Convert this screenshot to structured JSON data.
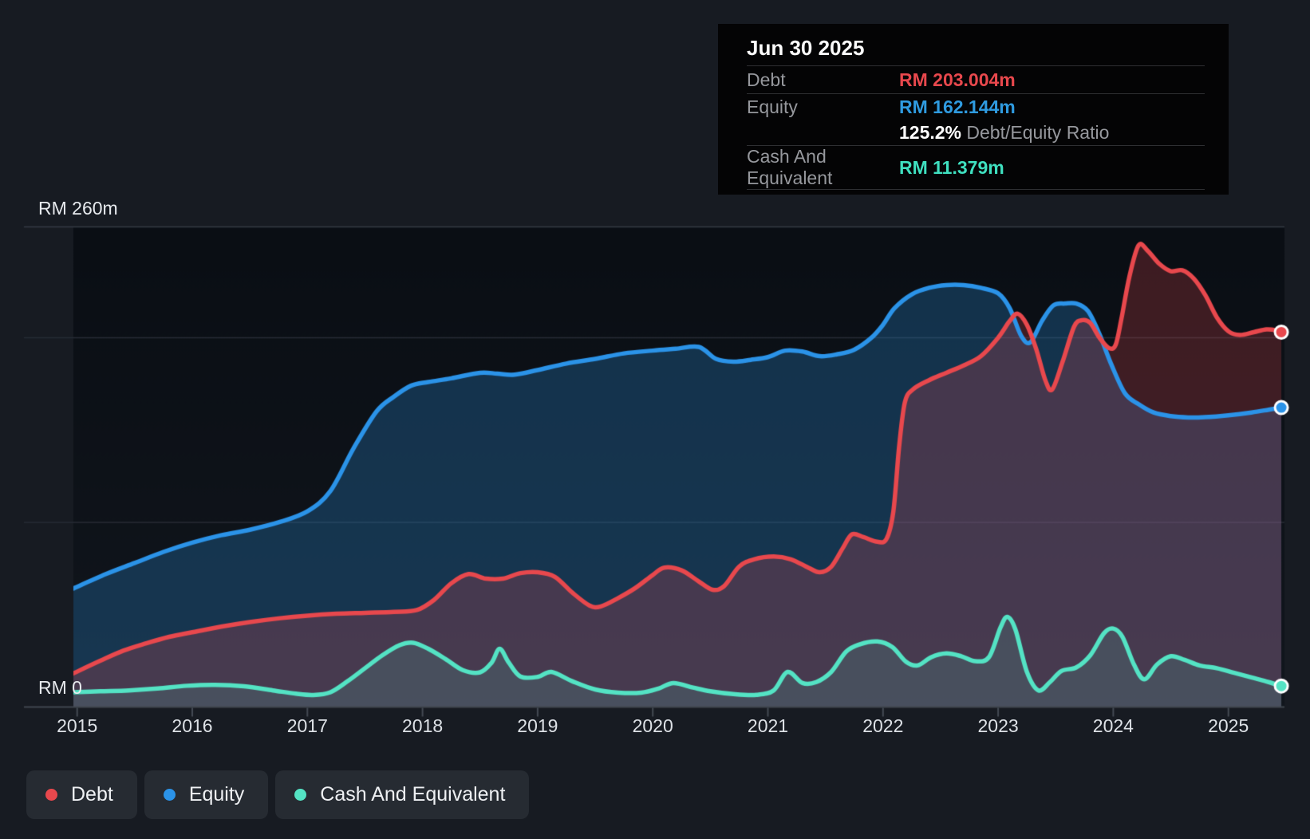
{
  "chart_data": {
    "type": "area",
    "unit": "RM millions",
    "grid": true,
    "legend_position": "bottom-left",
    "x_axis": {
      "labels": [
        "2015",
        "2016",
        "2017",
        "2018",
        "2019",
        "2020",
        "2021",
        "2022",
        "2023",
        "2024",
        "2025"
      ],
      "range": [
        2014.96,
        2025.46
      ]
    },
    "y_axis": {
      "top_label": "RM 260m",
      "zero_label": "RM 0",
      "ylim": [
        0,
        260
      ],
      "gridline_values": [
        260,
        200,
        100,
        0
      ]
    },
    "series": [
      {
        "name": "Equity",
        "color": "#2b93e8",
        "fill": "rgba(41,132,201,0.30)",
        "last_point_label": "RM 162.144m",
        "points": [
          [
            2014.96,
            64
          ],
          [
            2015.25,
            72
          ],
          [
            2015.5,
            78
          ],
          [
            2015.75,
            84
          ],
          [
            2016,
            89
          ],
          [
            2016.25,
            93
          ],
          [
            2016.5,
            96
          ],
          [
            2016.75,
            100
          ],
          [
            2017,
            106
          ],
          [
            2017.2,
            117
          ],
          [
            2017.4,
            140
          ],
          [
            2017.6,
            160
          ],
          [
            2017.75,
            168
          ],
          [
            2017.9,
            174
          ],
          [
            2018.05,
            176
          ],
          [
            2018.25,
            178
          ],
          [
            2018.5,
            181
          ],
          [
            2018.65,
            180.5
          ],
          [
            2018.8,
            180
          ],
          [
            2019,
            182.5
          ],
          [
            2019.25,
            186
          ],
          [
            2019.5,
            188.5
          ],
          [
            2019.75,
            191.5
          ],
          [
            2020,
            193
          ],
          [
            2020.2,
            194
          ],
          [
            2020.4,
            195
          ],
          [
            2020.55,
            188.5
          ],
          [
            2020.7,
            187
          ],
          [
            2020.85,
            188
          ],
          [
            2021,
            189.5
          ],
          [
            2021.15,
            193
          ],
          [
            2021.3,
            192.5
          ],
          [
            2021.45,
            190
          ],
          [
            2021.6,
            191
          ],
          [
            2021.75,
            193.5
          ],
          [
            2021.9,
            200
          ],
          [
            2022,
            207
          ],
          [
            2022.1,
            216
          ],
          [
            2022.25,
            223.5
          ],
          [
            2022.4,
            227
          ],
          [
            2022.55,
            228.5
          ],
          [
            2022.7,
            228.5
          ],
          [
            2022.85,
            227
          ],
          [
            2023,
            224
          ],
          [
            2023.1,
            216
          ],
          [
            2023.2,
            201
          ],
          [
            2023.28,
            197.5
          ],
          [
            2023.38,
            209
          ],
          [
            2023.48,
            217.5
          ],
          [
            2023.58,
            218.5
          ],
          [
            2023.68,
            218.5
          ],
          [
            2023.78,
            214.5
          ],
          [
            2023.88,
            202
          ],
          [
            2023.98,
            186
          ],
          [
            2024.1,
            170
          ],
          [
            2024.22,
            164
          ],
          [
            2024.35,
            159.5
          ],
          [
            2024.5,
            157.5
          ],
          [
            2024.65,
            156.8
          ],
          [
            2024.8,
            157
          ],
          [
            2025,
            158
          ],
          [
            2025.2,
            159.5
          ],
          [
            2025.35,
            161
          ],
          [
            2025.46,
            162.144
          ]
        ]
      },
      {
        "name": "Debt",
        "color": "#e8484d",
        "fill": "rgba(226,72,79,0.24)",
        "last_point_label": "RM 203.004m",
        "points": [
          [
            2014.96,
            18
          ],
          [
            2015.2,
            25
          ],
          [
            2015.4,
            30.5
          ],
          [
            2015.6,
            34.5
          ],
          [
            2015.8,
            38
          ],
          [
            2016,
            40.5
          ],
          [
            2016.25,
            43.5
          ],
          [
            2016.5,
            46
          ],
          [
            2016.75,
            48
          ],
          [
            2017,
            49.5
          ],
          [
            2017.25,
            50.5
          ],
          [
            2017.5,
            51
          ],
          [
            2017.75,
            51.5
          ],
          [
            2017.95,
            52.5
          ],
          [
            2018.1,
            58
          ],
          [
            2018.25,
            67
          ],
          [
            2018.4,
            72
          ],
          [
            2018.55,
            69.5
          ],
          [
            2018.7,
            69.5
          ],
          [
            2018.85,
            72.5
          ],
          [
            2019,
            73
          ],
          [
            2019.15,
            70.5
          ],
          [
            2019.3,
            62
          ],
          [
            2019.45,
            55
          ],
          [
            2019.55,
            54.5
          ],
          [
            2019.7,
            59
          ],
          [
            2019.85,
            64.5
          ],
          [
            2020,
            71.5
          ],
          [
            2020.1,
            75.5
          ],
          [
            2020.25,
            74
          ],
          [
            2020.4,
            68
          ],
          [
            2020.52,
            63.5
          ],
          [
            2020.62,
            65.5
          ],
          [
            2020.75,
            76
          ],
          [
            2020.88,
            80
          ],
          [
            2021.05,
            81.5
          ],
          [
            2021.2,
            80
          ],
          [
            2021.35,
            75.5
          ],
          [
            2021.45,
            73
          ],
          [
            2021.55,
            76
          ],
          [
            2021.65,
            86
          ],
          [
            2021.73,
            93.5
          ],
          [
            2021.83,
            92
          ],
          [
            2021.95,
            89.5
          ],
          [
            2022.03,
            91
          ],
          [
            2022.09,
            106
          ],
          [
            2022.14,
            141
          ],
          [
            2022.19,
            165
          ],
          [
            2022.26,
            172
          ],
          [
            2022.4,
            177
          ],
          [
            2022.55,
            181
          ],
          [
            2022.7,
            185
          ],
          [
            2022.85,
            190
          ],
          [
            2023,
            200
          ],
          [
            2023.1,
            209
          ],
          [
            2023.17,
            213
          ],
          [
            2023.25,
            207
          ],
          [
            2023.33,
            194
          ],
          [
            2023.41,
            177
          ],
          [
            2023.47,
            172
          ],
          [
            2023.56,
            187
          ],
          [
            2023.66,
            206
          ],
          [
            2023.73,
            209.5
          ],
          [
            2023.8,
            208
          ],
          [
            2023.88,
            200
          ],
          [
            2023.96,
            194.5
          ],
          [
            2024.02,
            196
          ],
          [
            2024.07,
            210
          ],
          [
            2024.14,
            233
          ],
          [
            2024.22,
            250
          ],
          [
            2024.3,
            247
          ],
          [
            2024.4,
            240
          ],
          [
            2024.5,
            236
          ],
          [
            2024.6,
            236.5
          ],
          [
            2024.7,
            232
          ],
          [
            2024.8,
            223
          ],
          [
            2024.9,
            211
          ],
          [
            2025,
            203.5
          ],
          [
            2025.1,
            201.5
          ],
          [
            2025.22,
            203
          ],
          [
            2025.33,
            204.5
          ],
          [
            2025.42,
            204
          ],
          [
            2025.46,
            203.004
          ]
        ]
      },
      {
        "name": "Cash And Equivalent",
        "color": "#54e3c4",
        "fill": "rgba(84,227,196,0.13)",
        "last_point_label": "RM 11.379m",
        "points": [
          [
            2014.96,
            8
          ],
          [
            2015.2,
            8.5
          ],
          [
            2015.45,
            9
          ],
          [
            2015.7,
            10
          ],
          [
            2015.95,
            11.5
          ],
          [
            2016.2,
            12
          ],
          [
            2016.45,
            11.2
          ],
          [
            2016.7,
            9
          ],
          [
            2016.9,
            7.2
          ],
          [
            2017.05,
            6.5
          ],
          [
            2017.2,
            8
          ],
          [
            2017.35,
            14
          ],
          [
            2017.5,
            21
          ],
          [
            2017.65,
            28
          ],
          [
            2017.8,
            33.5
          ],
          [
            2017.92,
            34.8
          ],
          [
            2018.05,
            31.5
          ],
          [
            2018.2,
            26
          ],
          [
            2018.35,
            20
          ],
          [
            2018.5,
            18.8
          ],
          [
            2018.6,
            24
          ],
          [
            2018.67,
            31.5
          ],
          [
            2018.75,
            24
          ],
          [
            2018.85,
            16.5
          ],
          [
            2019,
            16.3
          ],
          [
            2019.12,
            19
          ],
          [
            2019.3,
            14
          ],
          [
            2019.5,
            9.5
          ],
          [
            2019.7,
            7.8
          ],
          [
            2019.9,
            7.8
          ],
          [
            2020.05,
            10
          ],
          [
            2020.18,
            13
          ],
          [
            2020.35,
            10.5
          ],
          [
            2020.5,
            8.5
          ],
          [
            2020.7,
            7
          ],
          [
            2020.9,
            6.6
          ],
          [
            2021.05,
            9
          ],
          [
            2021.17,
            19
          ],
          [
            2021.3,
            13
          ],
          [
            2021.42,
            13.5
          ],
          [
            2021.55,
            19
          ],
          [
            2021.68,
            30
          ],
          [
            2021.8,
            34
          ],
          [
            2021.95,
            35.5
          ],
          [
            2022.08,
            32.5
          ],
          [
            2022.2,
            24.5
          ],
          [
            2022.3,
            22.5
          ],
          [
            2022.42,
            27
          ],
          [
            2022.55,
            29
          ],
          [
            2022.68,
            27.5
          ],
          [
            2022.8,
            24.8
          ],
          [
            2022.92,
            27
          ],
          [
            2023.02,
            43
          ],
          [
            2023.08,
            48.8
          ],
          [
            2023.15,
            42
          ],
          [
            2023.25,
            19
          ],
          [
            2023.35,
            9
          ],
          [
            2023.45,
            13.5
          ],
          [
            2023.55,
            19.5
          ],
          [
            2023.68,
            21.5
          ],
          [
            2023.8,
            28
          ],
          [
            2023.92,
            40
          ],
          [
            2024.0,
            42.5
          ],
          [
            2024.08,
            38
          ],
          [
            2024.18,
            23
          ],
          [
            2024.27,
            15
          ],
          [
            2024.38,
            23
          ],
          [
            2024.5,
            27.5
          ],
          [
            2024.62,
            25.5
          ],
          [
            2024.75,
            22.5
          ],
          [
            2024.9,
            21
          ],
          [
            2025.05,
            18.5
          ],
          [
            2025.2,
            16
          ],
          [
            2025.35,
            13.5
          ],
          [
            2025.46,
            11.379
          ]
        ]
      }
    ]
  },
  "tooltip": {
    "title": "Jun 30 2025",
    "debt_label": "Debt",
    "debt_value": "RM 203.004m",
    "equity_label": "Equity",
    "equity_value": "RM 162.144m",
    "ratio_value": "125.2%",
    "ratio_label": " Debt/Equity Ratio",
    "cash_label": "Cash And Equivalent",
    "cash_value": "RM 11.379m"
  },
  "legend": {
    "items": [
      {
        "label": "Debt",
        "color": "#e8484d"
      },
      {
        "label": "Equity",
        "color": "#2b93e8"
      },
      {
        "label": "Cash And Equivalent",
        "color": "#54e3c4"
      }
    ]
  },
  "y_axis_labels": {
    "top": "RM 260m",
    "zero": "RM 0"
  },
  "colors": {
    "debt": "#e8484d",
    "equity": "#2b93e8",
    "cash": "#54e3c4",
    "page_background": "#171b22",
    "plot_background": "#0c1016",
    "tooltip_background": "#040405"
  }
}
